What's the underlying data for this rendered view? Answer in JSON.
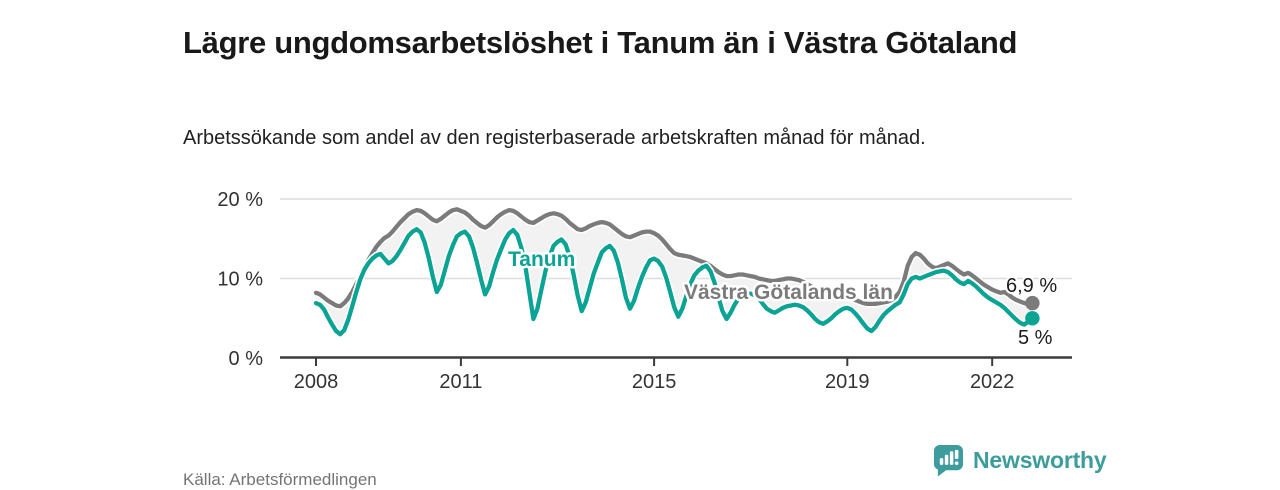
{
  "header": {
    "title": "Lägre ungdomsarbetslöshet i Tanum än i Västra Götaland",
    "subtitle": "Arbetssökande som andel av den registerbaserade arbetskraften månad för månad."
  },
  "footer": {
    "source": "Källa: Arbetsförmedlingen",
    "brand": "Newsworthy",
    "brand_icon": "bar-chart-bubble-icon"
  },
  "colors": {
    "tanum": "#0ba394",
    "region": "#7b7b7b",
    "band": "#f2f2f2",
    "grid": "#dcdcdc",
    "axis": "#3c3c3c",
    "tick_text": "#333333",
    "title_text": "#191919",
    "muted_text": "#757575",
    "brand": "#3c9d9c"
  },
  "chart_data": {
    "type": "line",
    "unit": "%",
    "x_interval": "monthly",
    "x_start": "2008-01",
    "x_end": "2022-11",
    "grid": "horizontal",
    "legend_position": "inline-labels",
    "band_fill_between_series": true,
    "ylim": [
      0,
      21.5
    ],
    "y_ticks": [
      {
        "value": 0,
        "label": "0 %"
      },
      {
        "value": 10,
        "label": "10 %"
      },
      {
        "value": 20,
        "label": "20 %"
      }
    ],
    "x_ticks": [
      {
        "year": 2008,
        "label": "2008"
      },
      {
        "year": 2011,
        "label": "2011"
      },
      {
        "year": 2015,
        "label": "2015"
      },
      {
        "year": 2019,
        "label": "2019"
      },
      {
        "year": 2022,
        "label": "2022"
      }
    ],
    "series": [
      {
        "name": "Tanum",
        "color": "#0ba394",
        "end_label": "5 %",
        "end_value": 5.0,
        "values": [
          6.9,
          6.7,
          6.1,
          5.1,
          4.2,
          3.4,
          3.0,
          3.5,
          4.8,
          6.5,
          8.3,
          9.9,
          11.1,
          11.9,
          12.5,
          12.9,
          13.1,
          12.5,
          11.9,
          12.2,
          12.8,
          13.6,
          14.5,
          15.4,
          15.9,
          16.2,
          15.8,
          14.5,
          12.6,
          10.3,
          8.3,
          9.2,
          11.0,
          12.8,
          14.2,
          15.3,
          15.7,
          15.9,
          15.3,
          13.9,
          12.0,
          9.9,
          8.0,
          9.0,
          10.8,
          12.4,
          13.7,
          14.9,
          15.7,
          16.1,
          15.5,
          13.9,
          11.6,
          8.3,
          4.9,
          6.2,
          8.6,
          10.9,
          12.7,
          14.1,
          14.6,
          14.9,
          14.3,
          12.8,
          10.5,
          7.9,
          5.9,
          7.0,
          8.8,
          10.6,
          12.0,
          13.3,
          13.8,
          14.1,
          13.5,
          12.0,
          9.9,
          7.6,
          6.2,
          7.2,
          8.8,
          10.2,
          11.4,
          12.3,
          12.5,
          12.2,
          11.5,
          10.1,
          8.3,
          6.4,
          5.2,
          6.2,
          7.8,
          9.3,
          10.4,
          11.0,
          11.4,
          11.6,
          10.9,
          9.5,
          7.6,
          5.9,
          4.9,
          5.7,
          6.7,
          7.5,
          7.9,
          8.1,
          8.1,
          7.9,
          7.5,
          6.8,
          6.2,
          5.9,
          5.7,
          6.0,
          6.3,
          6.5,
          6.6,
          6.7,
          6.6,
          6.4,
          6.0,
          5.5,
          4.9,
          4.5,
          4.3,
          4.6,
          5.0,
          5.5,
          5.9,
          6.2,
          6.3,
          6.1,
          5.6,
          5.0,
          4.3,
          3.7,
          3.4,
          3.9,
          4.7,
          5.4,
          5.9,
          6.3,
          6.7,
          7.0,
          8.0,
          9.3,
          10.0,
          10.2,
          10.0,
          10.2,
          10.4,
          10.6,
          10.8,
          10.9,
          11.0,
          10.8,
          10.4,
          9.9,
          9.5,
          9.3,
          9.7,
          9.4,
          9.0,
          8.5,
          8.0,
          7.6,
          7.3,
          7.0,
          6.7,
          6.3,
          5.8,
          5.3,
          4.8,
          4.4,
          4.2,
          4.6,
          5.0
        ]
      },
      {
        "name": "Västra Götalands län",
        "color": "#7b7b7b",
        "end_label": "6,9 %",
        "end_value": 6.9,
        "values": [
          8.2,
          8.0,
          7.6,
          7.2,
          6.9,
          6.6,
          6.5,
          6.9,
          7.5,
          8.3,
          9.3,
          10.3,
          11.3,
          12.3,
          13.2,
          14.0,
          14.6,
          15.1,
          15.4,
          15.9,
          16.5,
          17.1,
          17.6,
          18.1,
          18.4,
          18.6,
          18.5,
          18.2,
          17.8,
          17.4,
          17.2,
          17.5,
          17.9,
          18.3,
          18.6,
          18.7,
          18.5,
          18.3,
          17.9,
          17.4,
          17.0,
          16.6,
          16.4,
          16.7,
          17.2,
          17.7,
          18.1,
          18.4,
          18.6,
          18.5,
          18.2,
          17.8,
          17.4,
          17.1,
          17.0,
          17.3,
          17.6,
          17.9,
          18.1,
          18.2,
          18.1,
          17.9,
          17.5,
          17.0,
          16.6,
          16.2,
          16.1,
          16.3,
          16.6,
          16.8,
          17.0,
          17.1,
          17.0,
          16.8,
          16.4,
          16.0,
          15.6,
          15.3,
          15.2,
          15.4,
          15.6,
          15.8,
          15.9,
          15.9,
          15.7,
          15.4,
          14.9,
          14.3,
          13.7,
          13.2,
          13.0,
          12.9,
          12.8,
          12.7,
          12.5,
          12.3,
          12.1,
          11.9,
          11.6,
          11.2,
          10.8,
          10.5,
          10.3,
          10.3,
          10.4,
          10.5,
          10.5,
          10.4,
          10.3,
          10.2,
          10.0,
          9.9,
          9.8,
          9.7,
          9.7,
          9.8,
          9.9,
          10.0,
          10.0,
          9.9,
          9.8,
          9.6,
          9.3,
          9.0,
          8.7,
          8.4,
          8.2,
          8.1,
          8.0,
          7.9,
          7.8,
          7.7,
          7.6,
          7.5,
          7.3,
          7.1,
          6.9,
          6.8,
          6.8,
          6.8,
          6.9,
          7.0,
          7.1,
          7.3,
          7.7,
          8.3,
          9.6,
          11.6,
          12.7,
          13.2,
          13.0,
          12.5,
          11.9,
          11.5,
          11.3,
          11.5,
          11.7,
          11.9,
          11.6,
          11.2,
          10.8,
          10.5,
          10.7,
          10.4,
          10.0,
          9.6,
          9.2,
          8.9,
          8.6,
          8.4,
          8.2,
          8.3,
          8.0,
          7.6,
          7.3,
          7.1,
          6.9,
          6.8,
          6.9
        ]
      }
    ]
  }
}
